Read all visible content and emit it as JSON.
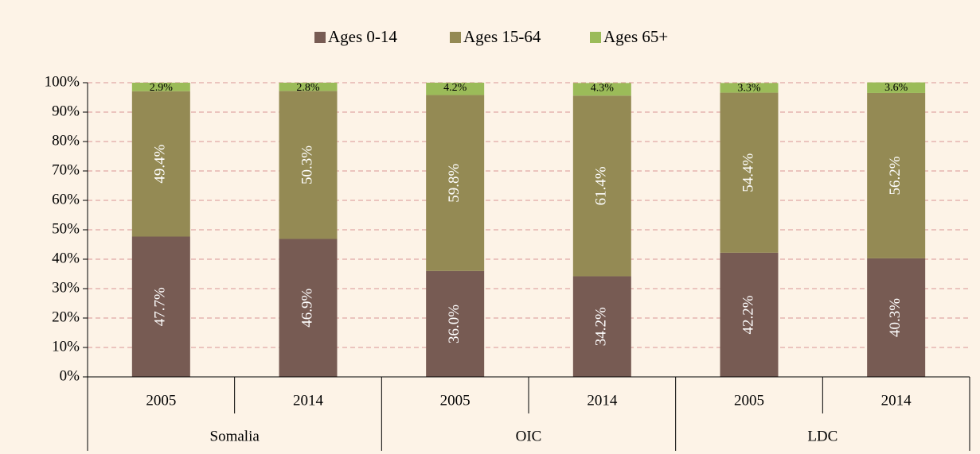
{
  "chart_data": {
    "type": "stacked-bar",
    "categories": [
      "2005",
      "2014",
      "2005",
      "2014",
      "2005",
      "2014"
    ],
    "groups": [
      "Somalia",
      "OIC",
      "LDC"
    ],
    "series": [
      {
        "name": "Ages 0-14",
        "color": "#775b53",
        "values": [
          47.7,
          46.9,
          36.0,
          34.2,
          42.2,
          40.3
        ],
        "value_labels": [
          "47.7%",
          "46.9%",
          "36.0%",
          "34.2%",
          "42.2%",
          "40.3%"
        ]
      },
      {
        "name": "Ages 15-64",
        "color": "#948a54",
        "values": [
          49.4,
          50.3,
          59.8,
          61.4,
          54.4,
          56.2
        ],
        "value_labels": [
          "49.4%",
          "50.3%",
          "59.8%",
          "61.4%",
          "54.4%",
          "56.2%"
        ]
      },
      {
        "name": "Ages 65+",
        "color": "#9bbb59",
        "values": [
          2.9,
          2.8,
          4.2,
          4.3,
          3.3,
          3.6
        ],
        "value_labels": [
          "2.9%",
          "2.8%",
          "4.2%",
          "4.3%",
          "3.3%",
          "3.6%"
        ]
      }
    ],
    "ylim": [
      0,
      100
    ],
    "yticks": [
      {
        "value": 0,
        "label": "0%"
      },
      {
        "value": 10,
        "label": "10%"
      },
      {
        "value": 20,
        "label": "20%"
      },
      {
        "value": 30,
        "label": "30%"
      },
      {
        "value": 40,
        "label": "40%"
      },
      {
        "value": 50,
        "label": "50%"
      },
      {
        "value": 60,
        "label": "60%"
      },
      {
        "value": 70,
        "label": "70%"
      },
      {
        "value": 80,
        "label": "80%"
      },
      {
        "value": 90,
        "label": "90%"
      },
      {
        "value": 100,
        "label": "100%"
      }
    ],
    "grid": true,
    "legend": "top"
  }
}
